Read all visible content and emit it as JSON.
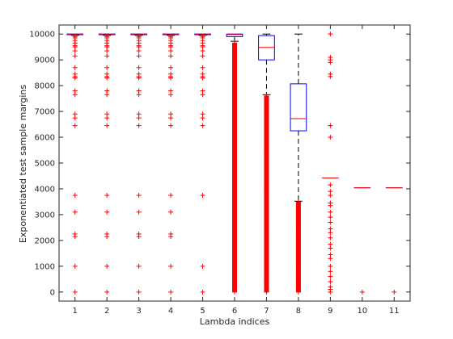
{
  "chart_data": {
    "type": "box",
    "xlabel": "Lambda indices",
    "ylabel": "Exponentiated test sample margins",
    "categories": [
      "1",
      "2",
      "3",
      "4",
      "5",
      "6",
      "7",
      "8",
      "9",
      "10",
      "11"
    ],
    "xlim": [
      0.5,
      11.5
    ],
    "ylim": [
      -350,
      10350
    ],
    "yticks": [
      0,
      1000,
      2000,
      3000,
      4000,
      5000,
      6000,
      7000,
      8000,
      9000,
      10000
    ],
    "grid": false,
    "colors": {
      "box": "#0000ff",
      "median": "#ff0000",
      "whisker": "#000000",
      "outlier": "#ff0000",
      "axis": "#262626"
    },
    "boxes": [
      {
        "x": "1",
        "q1": 9975,
        "median": 10000,
        "q3": 10000,
        "whisker_low": 9950,
        "whisker_high": 10000,
        "outliers": [
          9900,
          9850,
          9750,
          9650,
          9550,
          9500,
          9350,
          9150,
          8700,
          8450,
          8350,
          8300,
          7800,
          7650,
          6900,
          6750,
          6450,
          3750,
          3100,
          2250,
          2150,
          1000,
          0
        ]
      },
      {
        "x": "2",
        "q1": 9975,
        "median": 10000,
        "q3": 10000,
        "whisker_low": 9950,
        "whisker_high": 10000,
        "outliers": [
          9900,
          9850,
          9750,
          9650,
          9550,
          9500,
          9350,
          9150,
          8700,
          8450,
          8350,
          8300,
          7800,
          7650,
          6900,
          6750,
          6450,
          3750,
          3100,
          2250,
          2150,
          1000,
          0
        ]
      },
      {
        "x": "3",
        "q1": 9975,
        "median": 10000,
        "q3": 10000,
        "whisker_low": 9950,
        "whisker_high": 10000,
        "outliers": [
          9900,
          9850,
          9750,
          9650,
          9550,
          9500,
          9350,
          9150,
          8700,
          8450,
          8350,
          8300,
          7800,
          7650,
          6900,
          6750,
          6450,
          3750,
          3100,
          2250,
          2150,
          1000,
          0
        ]
      },
      {
        "x": "4",
        "q1": 9975,
        "median": 10000,
        "q3": 10000,
        "whisker_low": 9950,
        "whisker_high": 10000,
        "outliers": [
          9900,
          9850,
          9750,
          9650,
          9550,
          9500,
          9350,
          9150,
          8700,
          8450,
          8350,
          8300,
          7800,
          7650,
          6900,
          6750,
          6450,
          3750,
          3100,
          2250,
          2150,
          1000,
          0
        ]
      },
      {
        "x": "5",
        "q1": 9975,
        "median": 10000,
        "q3": 10000,
        "whisker_low": 9950,
        "whisker_high": 10000,
        "outliers": [
          9900,
          9850,
          9750,
          9650,
          9550,
          9500,
          9350,
          9150,
          8700,
          8450,
          8350,
          8300,
          7800,
          7650,
          6900,
          6750,
          6450,
          3750,
          1000,
          0
        ]
      },
      {
        "x": "6",
        "q1": 9900,
        "median": 9980,
        "q3": 10000,
        "whisker_low": 9720,
        "whisker_high": 10000,
        "outlier_band": [
          0,
          9650
        ],
        "outliers": [
          9650,
          9400,
          9100,
          8800,
          8500,
          8200,
          7900,
          7600,
          7300,
          7000,
          6700,
          6400,
          6100,
          5800,
          5500,
          5200,
          4900,
          4600,
          4300,
          4000,
          3700,
          3400,
          3100,
          2800,
          2500,
          2200,
          1900,
          1600,
          1300,
          1000,
          700,
          400,
          100,
          0
        ]
      },
      {
        "x": "7",
        "q1": 9000,
        "median": 9480,
        "q3": 9940,
        "whisker_low": 7650,
        "whisker_high": 10000,
        "outlier_band": [
          0,
          7600
        ],
        "outliers": [
          7600,
          7300,
          7000,
          6700,
          6400,
          6100,
          5800,
          5500,
          5200,
          4900,
          4600,
          4300,
          4000,
          3700,
          3400,
          3100,
          2800,
          2500,
          2200,
          1900,
          1600,
          1300,
          1000,
          700,
          400,
          100,
          0
        ]
      },
      {
        "x": "8",
        "q1": 6250,
        "median": 6720,
        "q3": 8070,
        "whisker_low": 3520,
        "whisker_high": 10000,
        "outlier_band": [
          0,
          3500
        ],
        "outliers": [
          3500,
          3200,
          2900,
          2600,
          2300,
          2000,
          1700,
          1400,
          1100,
          800,
          500,
          200,
          0
        ]
      },
      {
        "x": "9",
        "q1": 4420,
        "median": 4420,
        "q3": 4420,
        "whisker_low": 4420,
        "whisker_high": 4420,
        "outliers": [
          10000,
          9100,
          9000,
          8900,
          8450,
          8350,
          6450,
          6000,
          4150,
          3900,
          3750,
          3450,
          3350,
          3100,
          2900,
          2700,
          2450,
          2300,
          2100,
          1850,
          1700,
          1450,
          1300,
          1000,
          800,
          600,
          400,
          200,
          100,
          0
        ]
      },
      {
        "x": "10",
        "q1": 4040,
        "median": 4040,
        "q3": 4040,
        "whisker_low": 4040,
        "whisker_high": 4040,
        "outliers": [
          0
        ]
      },
      {
        "x": "11",
        "q1": 4040,
        "median": 4040,
        "q3": 4040,
        "whisker_low": 4040,
        "whisker_high": 4040,
        "outliers": [
          0
        ]
      }
    ]
  }
}
